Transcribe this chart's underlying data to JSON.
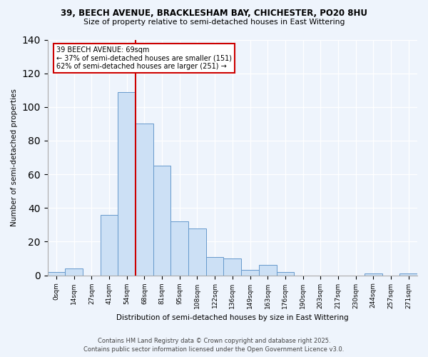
{
  "title1": "39, BEECH AVENUE, BRACKLESHAM BAY, CHICHESTER, PO20 8HU",
  "title2": "Size of property relative to semi-detached houses in East Wittering",
  "xlabel": "Distribution of semi-detached houses by size in East Wittering",
  "ylabel": "Number of semi-detached properties",
  "bar_labels": [
    "0sqm",
    "14sqm",
    "27sqm",
    "41sqm",
    "54sqm",
    "68sqm",
    "81sqm",
    "95sqm",
    "108sqm",
    "122sqm",
    "136sqm",
    "149sqm",
    "163sqm",
    "176sqm",
    "190sqm",
    "203sqm",
    "217sqm",
    "230sqm",
    "244sqm",
    "257sqm",
    "271sqm"
  ],
  "bar_values": [
    2,
    4,
    0,
    36,
    109,
    90,
    65,
    32,
    28,
    11,
    10,
    3,
    6,
    2,
    0,
    0,
    0,
    0,
    1,
    0,
    1
  ],
  "bar_color": "#cce0f5",
  "bar_edge_color": "#6699cc",
  "vline_color": "#cc0000",
  "annotation_title": "39 BEECH AVENUE: 69sqm",
  "annotation_line1": "← 37% of semi-detached houses are smaller (151)",
  "annotation_line2": "62% of semi-detached houses are larger (251) →",
  "annotation_box_color": "white",
  "annotation_box_edge": "#cc0000",
  "ylim": [
    0,
    140
  ],
  "footer1": "Contains HM Land Registry data © Crown copyright and database right 2025.",
  "footer2": "Contains public sector information licensed under the Open Government Licence v3.0.",
  "background_color": "#eef4fc",
  "grid_color": "#ffffff",
  "vline_bar_index": 4.5
}
